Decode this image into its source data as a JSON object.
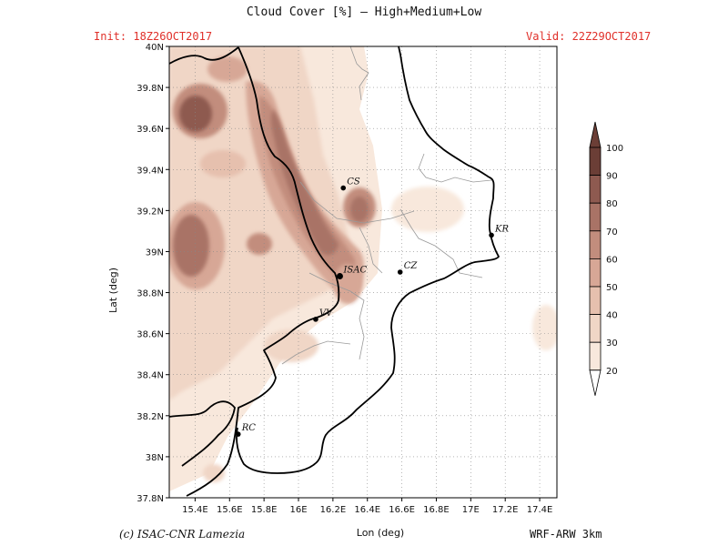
{
  "header": {
    "title": "Cloud Cover [%] — High+Medium+Low",
    "init": "Init: 18Z26OCT2017",
    "valid": "Valid: 22Z29OCT2017"
  },
  "footer": {
    "credit": "(c) ISAC-CNR Lamezia",
    "model": "WRF-ARW 3km"
  },
  "map": {
    "lon_range": [
      15.25,
      17.5
    ],
    "lat_range": [
      37.8,
      40.0
    ],
    "xlabel": "Lon (deg)",
    "ylabel": "Lat (deg)",
    "lon_ticks": [
      15.4,
      15.6,
      15.8,
      16.0,
      16.2,
      16.4,
      16.6,
      16.8,
      17.0,
      17.2,
      17.4
    ],
    "lon_tick_labels": [
      "15.4E",
      "15.6E",
      "15.8E",
      "16E",
      "16.2E",
      "16.4E",
      "16.6E",
      "16.8E",
      "17E",
      "17.2E",
      "17.4E"
    ],
    "lat_ticks": [
      37.8,
      38.0,
      38.2,
      38.4,
      38.6,
      38.8,
      39.0,
      39.2,
      39.4,
      39.6,
      39.8,
      40.0
    ],
    "lat_tick_labels": [
      "37.8N",
      "38N",
      "38.2N",
      "38.4N",
      "38.6N",
      "38.8N",
      "39N",
      "39.2N",
      "39.4N",
      "39.6N",
      "39.8N",
      "40N"
    ],
    "grid": "dotted",
    "cities": [
      {
        "label": "CS",
        "lon": 16.26,
        "lat": 39.31,
        "color": "#111111"
      },
      {
        "label": "ISAC",
        "lon": 16.24,
        "lat": 38.88,
        "color": "#e0302a"
      },
      {
        "label": "CZ",
        "lon": 16.59,
        "lat": 38.9,
        "color": "#111111"
      },
      {
        "label": "KR",
        "lon": 17.12,
        "lat": 39.08,
        "color": "#111111"
      },
      {
        "label": "VV",
        "lon": 16.1,
        "lat": 38.67,
        "color": "#111111"
      },
      {
        "label": "RC",
        "lon": 15.65,
        "lat": 38.11,
        "color": "#111111"
      }
    ]
  },
  "legend": {
    "levels": [
      "20",
      "30",
      "40",
      "50",
      "60",
      "70",
      "80",
      "90",
      "100"
    ],
    "colors": [
      "#fdf7f2",
      "#f8e8dc",
      "#f0d6c6",
      "#e6c0ae",
      "#d7a796",
      "#c28d7d",
      "#a97366",
      "#8e5a50",
      "#6b3e36"
    ]
  }
}
